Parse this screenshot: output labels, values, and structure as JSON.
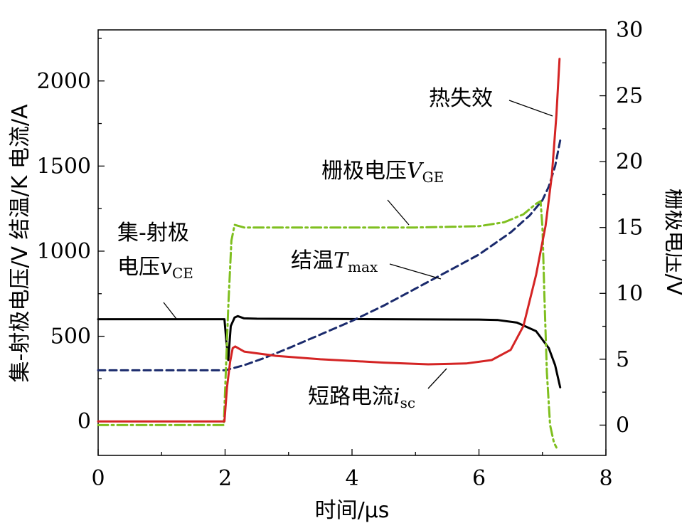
{
  "chart_data": {
    "type": "line",
    "xlabel": "时间/μs",
    "ylabel_left": "集-射极电压/V   结温/K   电流/A",
    "ylabel_right": "栅极电压/V",
    "xlim": [
      0,
      8
    ],
    "ylim_left": [
      -200,
      2300
    ],
    "ylim_right": [
      -2.3,
      30
    ],
    "x_ticks": [
      "0",
      "2",
      "4",
      "6",
      "8"
    ],
    "y_left_ticks": [
      "0",
      "500",
      "1000",
      "1500",
      "2000"
    ],
    "y_right_ticks": [
      "0",
      "5",
      "10",
      "15",
      "20",
      "25",
      "30"
    ],
    "grid": false,
    "series": [
      {
        "name": "集-射极电压vCE",
        "axis": "left",
        "color": "#000000",
        "dash": "solid",
        "points": [
          [
            0,
            600
          ],
          [
            1.99,
            600
          ],
          [
            2.02,
            470
          ],
          [
            2.05,
            360
          ],
          [
            2.09,
            560
          ],
          [
            2.15,
            610
          ],
          [
            2.2,
            618
          ],
          [
            2.3,
            605
          ],
          [
            2.5,
            603
          ],
          [
            4,
            601
          ],
          [
            6,
            598
          ],
          [
            6.3,
            595
          ],
          [
            6.6,
            580
          ],
          [
            6.9,
            530
          ],
          [
            7.1,
            430
          ],
          [
            7.2,
            330
          ],
          [
            7.28,
            200
          ]
        ]
      },
      {
        "name": "短路电流isc",
        "axis": "left",
        "color": "#d42424",
        "dash": "solid",
        "points": [
          [
            0,
            0
          ],
          [
            1.99,
            0
          ],
          [
            2.03,
            200
          ],
          [
            2.08,
            350
          ],
          [
            2.12,
            430
          ],
          [
            2.16,
            440
          ],
          [
            2.3,
            410
          ],
          [
            2.8,
            385
          ],
          [
            3.5,
            365
          ],
          [
            4.5,
            345
          ],
          [
            5.2,
            335
          ],
          [
            5.8,
            340
          ],
          [
            6.2,
            360
          ],
          [
            6.5,
            420
          ],
          [
            6.7,
            560
          ],
          [
            6.9,
            860
          ],
          [
            7.05,
            1150
          ],
          [
            7.15,
            1450
          ],
          [
            7.22,
            1800
          ],
          [
            7.27,
            2130
          ]
        ]
      },
      {
        "name": "结温Tmax",
        "axis": "left",
        "color": "#1a2a6c",
        "dash": "dashed",
        "points": [
          [
            0,
            300
          ],
          [
            2,
            300
          ],
          [
            2.3,
            330
          ],
          [
            2.6,
            370
          ],
          [
            3,
            430
          ],
          [
            3.5,
            510
          ],
          [
            4,
            590
          ],
          [
            4.5,
            680
          ],
          [
            5,
            780
          ],
          [
            5.5,
            880
          ],
          [
            6,
            980
          ],
          [
            6.5,
            1110
          ],
          [
            6.8,
            1210
          ],
          [
            7,
            1300
          ],
          [
            7.1,
            1380
          ],
          [
            7.2,
            1500
          ],
          [
            7.28,
            1650
          ]
        ]
      },
      {
        "name": "栅极电压VGE",
        "axis": "right",
        "color": "#7fbf1f",
        "dash": "dashdot",
        "points": [
          [
            0,
            0
          ],
          [
            1.98,
            0
          ],
          [
            2.05,
            9
          ],
          [
            2.1,
            14
          ],
          [
            2.15,
            15.2
          ],
          [
            2.3,
            15
          ],
          [
            3,
            15
          ],
          [
            4,
            15
          ],
          [
            5,
            15
          ],
          [
            6,
            15.1
          ],
          [
            6.4,
            15.4
          ],
          [
            6.7,
            16
          ],
          [
            6.9,
            16.8
          ],
          [
            6.97,
            17
          ],
          [
            7.0,
            15
          ],
          [
            7.03,
            10
          ],
          [
            7.07,
            4
          ],
          [
            7.12,
            0
          ],
          [
            7.18,
            -1.3
          ],
          [
            7.22,
            -1.7
          ]
        ]
      }
    ],
    "annotations": [
      {
        "text": "集-射极",
        "target": "vce"
      },
      {
        "text": "电压",
        "sub_var": "v",
        "sub": "CE",
        "target": "vce"
      },
      {
        "text": "栅极电压",
        "sub_var": "V",
        "sub": "GE",
        "target": "vge"
      },
      {
        "text": "结温",
        "sub_var": "T",
        "sub": "max",
        "target": "tmax"
      },
      {
        "text": "热失效",
        "target": "isc_end"
      },
      {
        "text": "短路电流",
        "sub_var": "i",
        "sub": "sc",
        "target": "isc"
      }
    ]
  }
}
